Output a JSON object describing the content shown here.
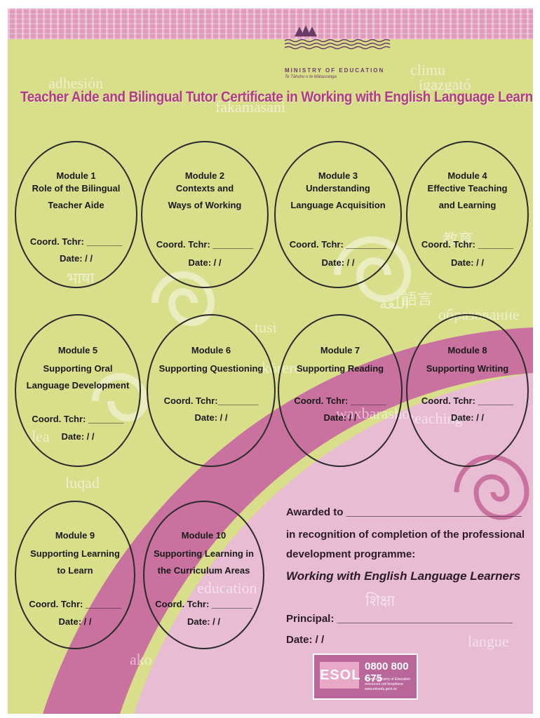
{
  "header": {
    "ministry_name": "MINISTRY OF EDUCATION",
    "ministry_subtitle": "Te Tāhuhu o te Mātauranga"
  },
  "title": "Teacher Aide and Bilingual Tutor Certificate in Working with English Language Learners",
  "modules": [
    {
      "title": "Module 1",
      "desc": [
        "Role of the Bilingual",
        "Teacher Aide"
      ],
      "coord": "Coord. Tchr: _______",
      "date": "Date:     /     /"
    },
    {
      "title": "Module 2",
      "desc": [
        "Contexts and",
        "Ways of Working"
      ],
      "coord": "Coord. Tchr: ________",
      "date": "Date:     /     /"
    },
    {
      "title": "Module 3",
      "desc": [
        "Understanding",
        "Language Acquisition"
      ],
      "coord": "Coord. Tchr: ________",
      "date": "Date:     /     /"
    },
    {
      "title": "Module 4",
      "desc": [
        "Effective Teaching",
        "and Learning"
      ],
      "coord": "Coord. Tchr: _______",
      "date": "Date:     /     /"
    },
    {
      "title": "Module 5",
      "desc": [
        "Supporting Oral",
        "Language Development"
      ],
      "coord": "Coord. Tchr: _______",
      "date": "Date:     /     /"
    },
    {
      "title": "Module 6",
      "desc": [
        "Supporting Questioning",
        ""
      ],
      "coord": "Coord. Tchr:________",
      "date": "Date:     /     /"
    },
    {
      "title": "Module 7",
      "desc": [
        "Supporting Reading",
        ""
      ],
      "coord": "Coord. Tchr: _______",
      "date": "Date:     /     /"
    },
    {
      "title": "Module 8",
      "desc": [
        "Supporting Writing",
        ""
      ],
      "coord": "Coord. Tchr: _______",
      "date": "Date:     /     /"
    },
    {
      "title": "Module 9",
      "desc": [
        "Supporting Learning",
        "to Learn"
      ],
      "coord": "Coord. Tchr: _______",
      "date": "Date:     /     /"
    },
    {
      "title": "Module 10",
      "desc": [
        "Supporting Learning in",
        "the Curriculum Areas"
      ],
      "coord": "Coord. Tchr: ________",
      "date": "Date:     /     /"
    }
  ],
  "award": {
    "awarded_to": "Awarded to ______________________________",
    "line1": "in recognition of completion of the professional",
    "line2": "development programme:",
    "programme": "Working with English Language Learners",
    "principal": "Principal:  ______________________________",
    "date": "Date:     /     /"
  },
  "background_words": [
    "adhesión",
    "climu",
    "fakamasani",
    "igazgató",
    "भाषा",
    "語言",
    "ako",
    "langue",
    "luqad",
    "शिक्षा",
    "education",
    "waxbarasho",
    "kōrero",
    "tusi",
    "teaching",
    "lea",
    "教育",
    "اللغة",
    "образование"
  ],
  "footer": {
    "logo_text": "ESOL",
    "phone": "0800 800 675",
    "small_lines": [
      "to order Ministry of Education",
      "resources call freephone",
      "www.minedu.govt.nz"
    ]
  },
  "colors": {
    "background": "#d8de8a",
    "swoosh": "#c9719f",
    "pale_pink": "#e8bcd3",
    "title": "#b03b86",
    "ink": "#1a1a1a"
  }
}
